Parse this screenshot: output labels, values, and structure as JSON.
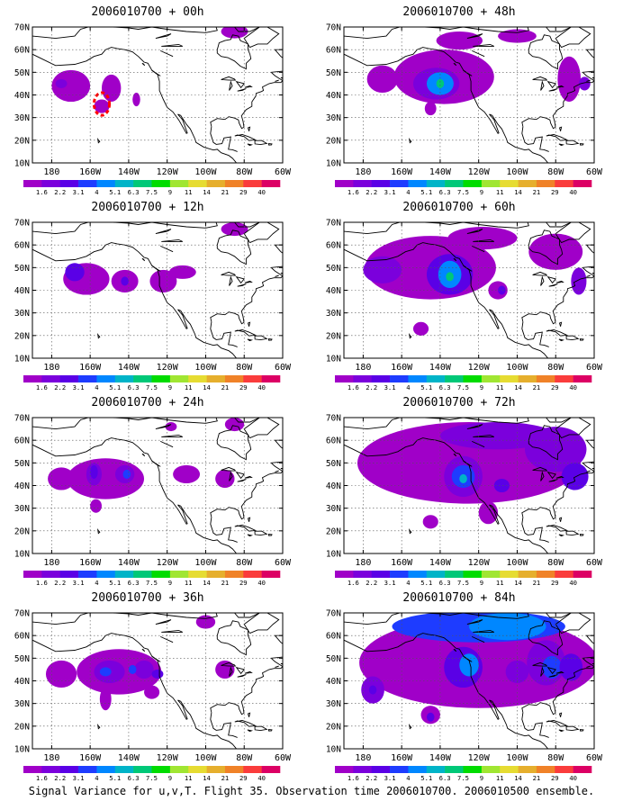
{
  "caption": "Signal Variance for u,v,T. Flight 35. Observation time 2006010700. 2006010500 ensemble.",
  "y_tick_labels": [
    "70N",
    "60N",
    "50N",
    "40N",
    "30N",
    "20N",
    "10N"
  ],
  "x_tick_labels": [
    "180",
    "160W",
    "140W",
    "120W",
    "100W",
    "80W",
    "60W"
  ],
  "colorbar": {
    "labels": [
      "1.6",
      "2.2",
      "3.1",
      "4",
      "5.1",
      "6.3",
      "7.5",
      "9",
      "11",
      "14",
      "21",
      "29",
      "40"
    ],
    "colors": [
      "#a000c8",
      "#7b00dc",
      "#5a00e6",
      "#1e3cff",
      "#0087ff",
      "#00b4c8",
      "#00c878",
      "#00dc00",
      "#a0e632",
      "#e6dc32",
      "#e6af2d",
      "#f08228",
      "#fa3c3c",
      "#dc0064"
    ]
  },
  "panels": [
    {
      "title": "2006010700 + 00h",
      "blobs": [
        {
          "lon": -170,
          "lat": 44,
          "rx": 10,
          "ry": 7,
          "level": 0
        },
        {
          "lon": -149,
          "lat": 43,
          "rx": 5,
          "ry": 6,
          "level": 0
        },
        {
          "lon": -154,
          "lat": 35,
          "rx": 4,
          "ry": 3,
          "level": 0
        },
        {
          "lon": -136,
          "lat": 38,
          "rx": 2,
          "ry": 3,
          "level": 0
        },
        {
          "lon": -175,
          "lat": 45,
          "rx": 3,
          "ry": 2,
          "level": 1
        },
        {
          "lon": -85,
          "lat": 68,
          "rx": 7,
          "ry": 3,
          "level": 0
        }
      ],
      "dashed": [
        {
          "lon": -154,
          "lat": 36,
          "rx": 4,
          "ry": 5
        }
      ]
    },
    {
      "title": "2006010700 + 12h",
      "blobs": [
        {
          "lon": -162,
          "lat": 45,
          "rx": 12,
          "ry": 7,
          "level": 0
        },
        {
          "lon": -142,
          "lat": 44,
          "rx": 7,
          "ry": 5,
          "level": 0
        },
        {
          "lon": -168,
          "lat": 48,
          "rx": 5,
          "ry": 4,
          "level": 2
        },
        {
          "lon": -142,
          "lat": 44,
          "rx": 2,
          "ry": 2,
          "level": 2
        },
        {
          "lon": -122,
          "lat": 44,
          "rx": 7,
          "ry": 5,
          "level": 0
        },
        {
          "lon": -112,
          "lat": 48,
          "rx": 7,
          "ry": 3,
          "level": 0
        },
        {
          "lon": -85,
          "lat": 67,
          "rx": 7,
          "ry": 3,
          "level": 0
        }
      ],
      "dashed": []
    },
    {
      "title": "2006010700 + 24h",
      "blobs": [
        {
          "lon": -152,
          "lat": 43,
          "rx": 20,
          "ry": 9,
          "level": 0
        },
        {
          "lon": -175,
          "lat": 43,
          "rx": 7,
          "ry": 5,
          "level": 0
        },
        {
          "lon": -158,
          "lat": 45,
          "rx": 4,
          "ry": 5,
          "level": 1
        },
        {
          "lon": -142,
          "lat": 45,
          "rx": 5,
          "ry": 4,
          "level": 1
        },
        {
          "lon": -158,
          "lat": 46,
          "rx": 2,
          "ry": 3,
          "level": 2
        },
        {
          "lon": -141,
          "lat": 45,
          "rx": 2,
          "ry": 2,
          "level": 3
        },
        {
          "lon": -157,
          "lat": 31,
          "rx": 3,
          "ry": 3,
          "level": 0
        },
        {
          "lon": -110,
          "lat": 45,
          "rx": 7,
          "ry": 4,
          "level": 0
        },
        {
          "lon": -90,
          "lat": 43,
          "rx": 5,
          "ry": 4,
          "level": 0
        },
        {
          "lon": -85,
          "lat": 67,
          "rx": 5,
          "ry": 3,
          "level": 0
        },
        {
          "lon": -118,
          "lat": 66,
          "rx": 3,
          "ry": 2,
          "level": 0
        }
      ],
      "dashed": []
    },
    {
      "title": "2006010700 + 36h",
      "blobs": [
        {
          "lon": -145,
          "lat": 44,
          "rx": 22,
          "ry": 10,
          "level": 0
        },
        {
          "lon": -175,
          "lat": 43,
          "rx": 8,
          "ry": 6,
          "level": 0
        },
        {
          "lon": -150,
          "lat": 44,
          "rx": 8,
          "ry": 5,
          "level": 1
        },
        {
          "lon": -132,
          "lat": 45,
          "rx": 5,
          "ry": 4,
          "level": 1
        },
        {
          "lon": -152,
          "lat": 44,
          "rx": 3,
          "ry": 2,
          "level": 3
        },
        {
          "lon": -138,
          "lat": 45,
          "rx": 2,
          "ry": 2,
          "level": 3
        },
        {
          "lon": -125,
          "lat": 43,
          "rx": 3,
          "ry": 2,
          "level": 2
        },
        {
          "lon": -152,
          "lat": 32,
          "rx": 3,
          "ry": 5,
          "level": 0
        },
        {
          "lon": -128,
          "lat": 35,
          "rx": 4,
          "ry": 3,
          "level": 0
        },
        {
          "lon": -90,
          "lat": 45,
          "rx": 5,
          "ry": 4,
          "level": 0
        },
        {
          "lon": -100,
          "lat": 66,
          "rx": 5,
          "ry": 3,
          "level": 0
        }
      ],
      "dashed": []
    },
    {
      "title": "2006010700 + 48h",
      "blobs": [
        {
          "lon": -138,
          "lat": 48,
          "rx": 26,
          "ry": 12,
          "level": 0
        },
        {
          "lon": -170,
          "lat": 47,
          "rx": 8,
          "ry": 6,
          "level": 0
        },
        {
          "lon": -142,
          "lat": 45,
          "rx": 12,
          "ry": 7,
          "level": 1
        },
        {
          "lon": -140,
          "lat": 45,
          "rx": 7,
          "ry": 5,
          "level": 4
        },
        {
          "lon": -140,
          "lat": 45,
          "rx": 2,
          "ry": 2,
          "level": 6
        },
        {
          "lon": -145,
          "lat": 34,
          "rx": 3,
          "ry": 3,
          "level": 0
        },
        {
          "lon": -130,
          "lat": 64,
          "rx": 12,
          "ry": 4,
          "level": 0
        },
        {
          "lon": -100,
          "lat": 66,
          "rx": 10,
          "ry": 3,
          "level": 0
        },
        {
          "lon": -73,
          "lat": 47,
          "rx": 6,
          "ry": 10,
          "level": 0
        },
        {
          "lon": -65,
          "lat": 45,
          "rx": 3,
          "ry": 3,
          "level": 1
        }
      ],
      "dashed": []
    },
    {
      "title": "2006010700 + 60h",
      "blobs": [
        {
          "lon": -145,
          "lat": 50,
          "rx": 34,
          "ry": 14,
          "level": 0
        },
        {
          "lon": -170,
          "lat": 49,
          "rx": 10,
          "ry": 6,
          "level": 1
        },
        {
          "lon": -135,
          "lat": 47,
          "rx": 12,
          "ry": 9,
          "level": 2
        },
        {
          "lon": -135,
          "lat": 47,
          "rx": 6,
          "ry": 6,
          "level": 4
        },
        {
          "lon": -135,
          "lat": 46,
          "rx": 2,
          "ry": 2,
          "level": 6
        },
        {
          "lon": -110,
          "lat": 40,
          "rx": 5,
          "ry": 4,
          "level": 0
        },
        {
          "lon": -108,
          "lat": 40,
          "rx": 2,
          "ry": 2,
          "level": 2
        },
        {
          "lon": -150,
          "lat": 23,
          "rx": 4,
          "ry": 3,
          "level": 0
        },
        {
          "lon": -118,
          "lat": 63,
          "rx": 18,
          "ry": 5,
          "level": 0
        },
        {
          "lon": -80,
          "lat": 57,
          "rx": 14,
          "ry": 8,
          "level": 0
        },
        {
          "lon": -68,
          "lat": 44,
          "rx": 4,
          "ry": 6,
          "level": 1
        }
      ],
      "dashed": []
    },
    {
      "title": "2006010700 + 72h",
      "blobs": [
        {
          "lon": -125,
          "lat": 50,
          "rx": 58,
          "ry": 18,
          "level": 0
        },
        {
          "lon": -128,
          "lat": 44,
          "rx": 10,
          "ry": 9,
          "level": 1
        },
        {
          "lon": -128,
          "lat": 44,
          "rx": 6,
          "ry": 5,
          "level": 3
        },
        {
          "lon": -128,
          "lat": 43,
          "rx": 2,
          "ry": 2,
          "level": 5
        },
        {
          "lon": -108,
          "lat": 40,
          "rx": 4,
          "ry": 3,
          "level": 2
        },
        {
          "lon": -145,
          "lat": 24,
          "rx": 4,
          "ry": 3,
          "level": 0
        },
        {
          "lon": -115,
          "lat": 28,
          "rx": 5,
          "ry": 5,
          "level": 0
        },
        {
          "lon": -110,
          "lat": 62,
          "rx": 30,
          "ry": 6,
          "level": 1
        },
        {
          "lon": -80,
          "lat": 56,
          "rx": 16,
          "ry": 10,
          "level": 1
        },
        {
          "lon": -70,
          "lat": 44,
          "rx": 7,
          "ry": 6,
          "level": 2
        }
      ],
      "dashed": []
    },
    {
      "title": "2006010700 + 84h",
      "blobs": [
        {
          "lon": -120,
          "lat": 48,
          "rx": 62,
          "ry": 20,
          "level": 0
        },
        {
          "lon": -120,
          "lat": 64,
          "rx": 45,
          "ry": 7,
          "level": 3
        },
        {
          "lon": -105,
          "lat": 64,
          "rx": 20,
          "ry": 6,
          "level": 4
        },
        {
          "lon": -128,
          "lat": 46,
          "rx": 10,
          "ry": 9,
          "level": 2
        },
        {
          "lon": -125,
          "lat": 47,
          "rx": 5,
          "ry": 5,
          "level": 4
        },
        {
          "lon": -100,
          "lat": 44,
          "rx": 6,
          "ry": 5,
          "level": 1
        },
        {
          "lon": -85,
          "lat": 48,
          "rx": 10,
          "ry": 10,
          "level": 1
        },
        {
          "lon": -82,
          "lat": 46,
          "rx": 5,
          "ry": 5,
          "level": 3
        },
        {
          "lon": -175,
          "lat": 36,
          "rx": 6,
          "ry": 6,
          "level": 1
        },
        {
          "lon": -175,
          "lat": 36,
          "rx": 2,
          "ry": 2,
          "level": 2
        },
        {
          "lon": -145,
          "lat": 25,
          "rx": 5,
          "ry": 4,
          "level": 0
        },
        {
          "lon": -145,
          "lat": 24,
          "rx": 2,
          "ry": 2,
          "level": 2
        },
        {
          "lon": -72,
          "lat": 46,
          "rx": 6,
          "ry": 6,
          "level": 2
        }
      ],
      "dashed": []
    }
  ]
}
